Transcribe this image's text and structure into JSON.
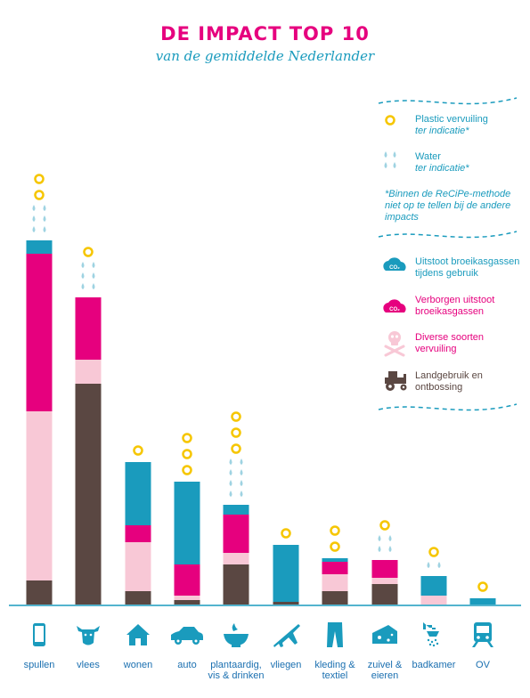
{
  "header": {
    "title": "DE IMPACT TOP 10",
    "subtitle": "van de gemiddelde Nederlander"
  },
  "legend": {
    "plastic": {
      "label": "Plastic vervuiling",
      "note": "ter indicatie*"
    },
    "water": {
      "label": "Water",
      "note": "ter indicatie*"
    },
    "footnote": "*Binnen de ReCiPe-methode niet op te tellen bij de andere impacts",
    "co2_use": {
      "label": "Uitstoot broeikasgassen tijdens gebruik",
      "icon": "co2-cloud-icon",
      "color": "#1a9bbd"
    },
    "co2_hidden": {
      "label": "Verborgen uitstoot broeikasgassen",
      "icon": "co2-cloud-icon",
      "color": "#e6007e"
    },
    "pollution": {
      "label": "Diverse soorten vervuiling",
      "icon": "skull-crossbones-icon",
      "color": "#f8c8d6"
    },
    "land": {
      "label": "Landgebruik en ontbossing",
      "icon": "tractor-icon",
      "color": "#5a4742"
    }
  },
  "chart_data": {
    "type": "bar",
    "stacked": true,
    "title": "DE IMPACT TOP 10",
    "subtitle": "van de gemiddelde Nederlander",
    "xlabel": "",
    "ylabel": "",
    "categories": [
      "spullen",
      "vlees",
      "wonen",
      "auto",
      "plantaardig, vis & drinken",
      "vliegen",
      "kleding & textiel",
      "zuivel & eieren",
      "badkamer",
      "OV"
    ],
    "category_lines": [
      [
        "spullen"
      ],
      [
        "vlees"
      ],
      [
        "wonen"
      ],
      [
        "auto"
      ],
      [
        "plantaardig,",
        "vis & drinken"
      ],
      [
        "vliegen"
      ],
      [
        "kleding &",
        "textiel"
      ],
      [
        "zuivel &",
        "eieren"
      ],
      [
        "badkamer"
      ],
      [
        "OV"
      ]
    ],
    "category_icons": [
      "smartphone-icon",
      "cow-icon",
      "house-icon",
      "car-icon",
      "bowl-icon",
      "airplane-icon",
      "trousers-icon",
      "cheese-icon",
      "shower-icon",
      "train-icon"
    ],
    "series": [
      {
        "name": "Landgebruik en ontbossing",
        "color": "#5a4742",
        "values": [
          27,
          248,
          15,
          5,
          45,
          3,
          15,
          23,
          0,
          0
        ]
      },
      {
        "name": "Diverse soorten vervuiling",
        "color": "#f8c8d6",
        "values": [
          190,
          27,
          55,
          5,
          13,
          0,
          19,
          7,
          10,
          0
        ]
      },
      {
        "name": "Verborgen uitstoot broeikasgassen",
        "color": "#e6007e",
        "values": [
          177,
          70,
          19,
          35,
          43,
          0,
          14,
          20,
          0,
          0
        ]
      },
      {
        "name": "Uitstoot broeikasgassen tijdens gebruik",
        "color": "#1a9bbd",
        "values": [
          15,
          0,
          71,
          93,
          11,
          64,
          4,
          0,
          22,
          7
        ]
      }
    ],
    "indicators": {
      "plastic": [
        2,
        1,
        1,
        3,
        3,
        1,
        2,
        1,
        1,
        1
      ],
      "water": [
        3,
        3,
        0,
        0,
        4,
        0,
        0,
        2,
        1,
        0
      ]
    },
    "ylim": [
      0,
      420
    ],
    "grid": false,
    "legend_position": "right"
  },
  "colors": {
    "accent_pink": "#e6007e",
    "accent_blue": "#1a9bbd",
    "plastic_ring": "#f6c600",
    "water_drop": "#9fd3e2",
    "light_pink": "#f8c8d6",
    "brown": "#5a4742"
  }
}
